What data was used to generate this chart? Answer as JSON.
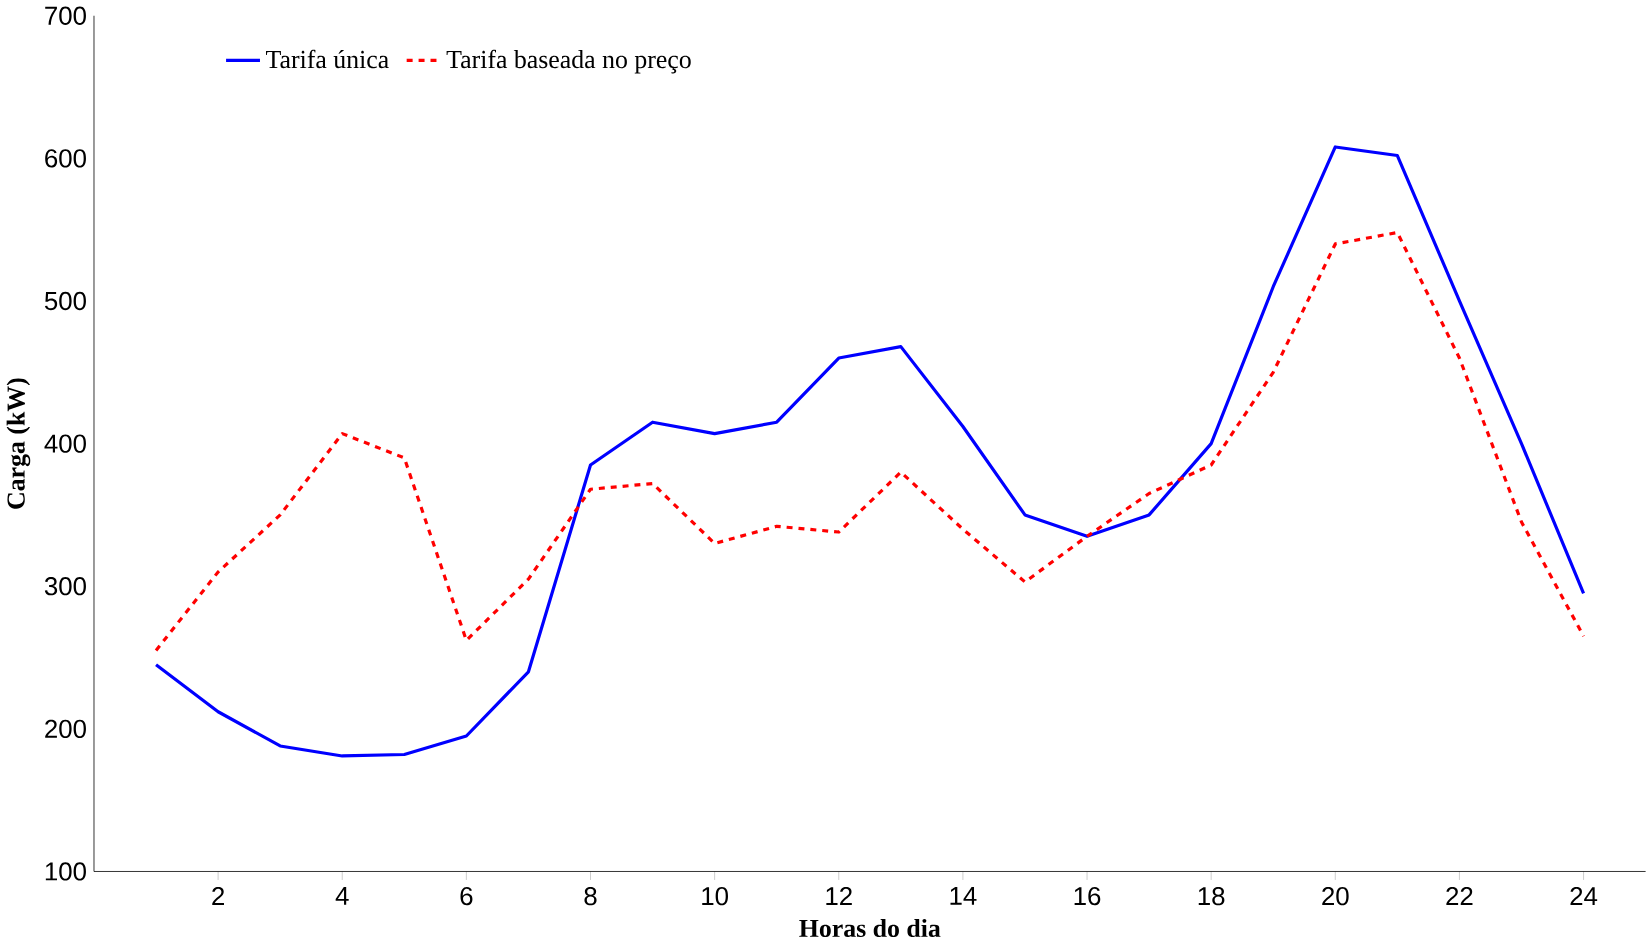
{
  "chart_data": {
    "type": "line",
    "xlabel": "Horas do dia",
    "ylabel": "Carga (kW)",
    "x": [
      1,
      2,
      3,
      4,
      5,
      6,
      7,
      8,
      9,
      10,
      11,
      12,
      13,
      14,
      15,
      16,
      17,
      18,
      19,
      20,
      21,
      22,
      23,
      24
    ],
    "series": [
      {
        "name": "Tarifa única",
        "color": "#0000ff",
        "line_style": "solid",
        "values": [
          245,
          212,
          188,
          181,
          182,
          195,
          240,
          385,
          415,
          407,
          415,
          460,
          468,
          412,
          350,
          335,
          350,
          400,
          510,
          608,
          602,
          500,
          400,
          295
        ]
      },
      {
        "name": "Tarifa baseada no preço",
        "color": "#ff0000",
        "line_style": "dashed",
        "values": [
          255,
          310,
          350,
          407,
          390,
          262,
          305,
          368,
          372,
          330,
          342,
          338,
          380,
          340,
          303,
          335,
          365,
          385,
          450,
          540,
          548,
          460,
          345,
          265
        ]
      }
    ],
    "xlim": [
      0,
      25
    ],
    "ylim": [
      100,
      700
    ],
    "xticks": [
      2,
      4,
      6,
      8,
      10,
      12,
      14,
      16,
      18,
      20,
      22,
      24
    ],
    "yticks": [
      100,
      200,
      300,
      400,
      500,
      600,
      700
    ],
    "grid": false,
    "legend": "top left",
    "marker": "none"
  }
}
